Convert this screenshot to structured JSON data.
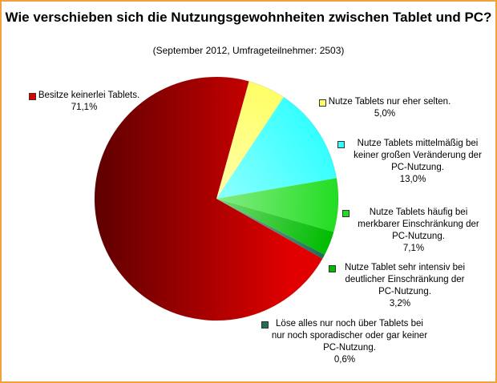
{
  "chart_data": {
    "type": "pie",
    "title": "Wie verschieben sich die Nutzungsgewohnheiten zwischen Tablet und PC?",
    "subtitle": "(September 2012, Umfrageteilnehmer: 2503)",
    "slices": [
      {
        "label": "Nutze Tablets nur eher selten.",
        "value": 5.0,
        "value_label": "5,0%",
        "color": "#ffff66",
        "label_side": "right"
      },
      {
        "label": "Nutze Tablets mittelmäßig bei keiner großen Veränderung der PC-Nutzung.",
        "value": 13.0,
        "value_label": "13,0%",
        "color": "#33ffff",
        "label_side": "right"
      },
      {
        "label": "Nutze Tablets häufig bei merkbarer Einschränkung der PC-Nutzung.",
        "value": 7.1,
        "value_label": "7,1%",
        "color": "#22dd22",
        "label_side": "right"
      },
      {
        "label": "Nutze Tablet sehr intensiv bei deutlicher Einschränkung der PC-Nutzung.",
        "value": 3.2,
        "value_label": "3,2%",
        "color": "#00bb00",
        "label_side": "right"
      },
      {
        "label": "Löse alles nur noch über Tablets bei nur noch sporadischer oder gar keiner PC-Nutzung.",
        "value": 0.6,
        "value_label": "0,6%",
        "color": "#1f6f55",
        "label_side": "bottom"
      },
      {
        "label": "Besitze keinerlei Tablets.",
        "value": 71.1,
        "value_label": "71,1%",
        "color": "#e00000",
        "label_side": "left"
      }
    ]
  }
}
